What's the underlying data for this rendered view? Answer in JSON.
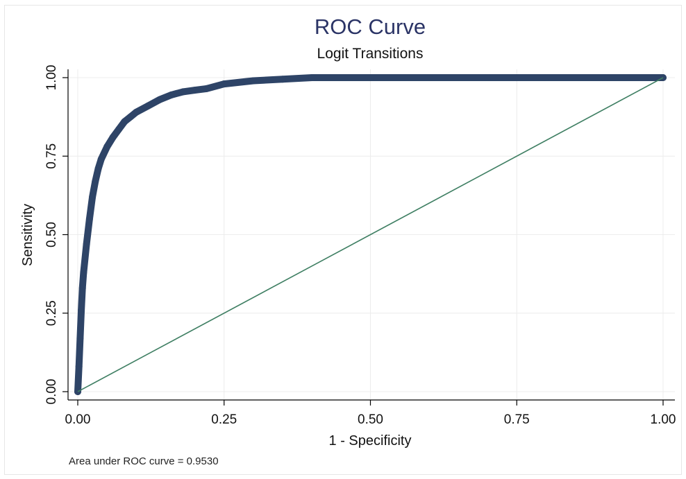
{
  "chart_data": {
    "type": "line",
    "title": "ROC Curve",
    "subtitle": "Logit Transitions",
    "xlabel": "1 - Specificity",
    "ylabel": "Sensitivity",
    "xlim": [
      0,
      1
    ],
    "ylim": [
      0,
      1
    ],
    "xticks": [
      "0.00",
      "0.25",
      "0.50",
      "0.75",
      "1.00"
    ],
    "yticks": [
      "0.00",
      "0.25",
      "0.50",
      "0.75",
      "1.00"
    ],
    "xtick_values": [
      0,
      0.25,
      0.5,
      0.75,
      1
    ],
    "ytick_values": [
      0,
      0.25,
      0.5,
      0.75,
      1
    ],
    "grid": true,
    "note": "Area under ROC curve = 0.9530",
    "series": [
      {
        "role": "roc",
        "color": "#2e4467",
        "x": [
          0,
          0.002,
          0.004,
          0.006,
          0.008,
          0.01,
          0.015,
          0.02,
          0.025,
          0.03,
          0.035,
          0.04,
          0.05,
          0.06,
          0.07,
          0.08,
          0.09,
          0.1,
          0.12,
          0.14,
          0.16,
          0.18,
          0.2,
          0.22,
          0.25,
          0.3,
          0.35,
          0.4,
          0.5,
          0.6,
          0.7,
          0.8,
          0.9,
          1.0
        ],
        "y": [
          0,
          0.08,
          0.17,
          0.26,
          0.33,
          0.38,
          0.47,
          0.55,
          0.62,
          0.67,
          0.71,
          0.74,
          0.78,
          0.81,
          0.835,
          0.86,
          0.875,
          0.89,
          0.91,
          0.93,
          0.945,
          0.955,
          0.96,
          0.965,
          0.98,
          0.99,
          0.995,
          1.0,
          1.0,
          1.0,
          1.0,
          1.0,
          1.0,
          1.0
        ]
      },
      {
        "role": "reference",
        "color": "#3f7f63",
        "x": [
          0,
          1
        ],
        "y": [
          0,
          1
        ]
      }
    ]
  }
}
